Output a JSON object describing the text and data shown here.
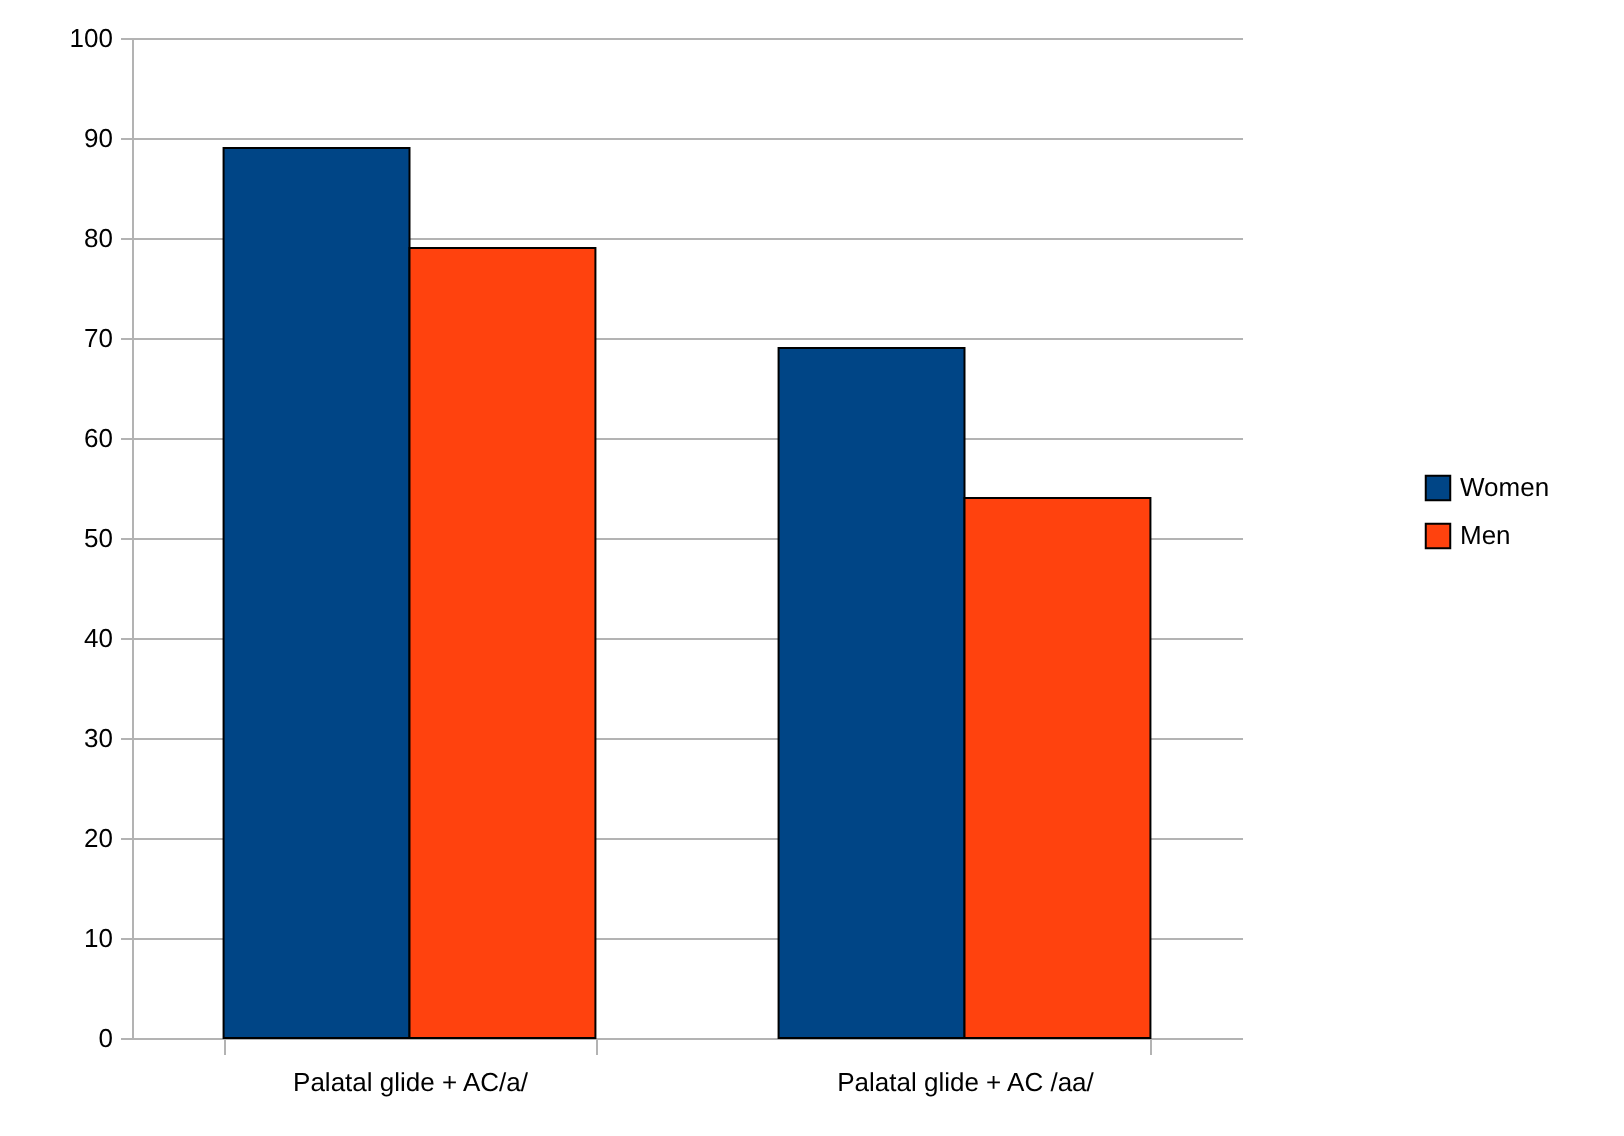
{
  "chart_data": {
    "type": "bar",
    "categories": [
      "Palatal glide + AC/a/",
      "Palatal glide + AC /aa/"
    ],
    "series": [
      {
        "name": "Women",
        "color": "#004586",
        "values": [
          89,
          69
        ]
      },
      {
        "name": "Men",
        "color": "#ff420e",
        "values": [
          79,
          54
        ]
      }
    ],
    "ylim": [
      0,
      100
    ],
    "yticks": [
      0,
      10,
      20,
      30,
      40,
      50,
      60,
      70,
      80,
      90,
      100
    ],
    "grid": "y",
    "legend": "right"
  }
}
